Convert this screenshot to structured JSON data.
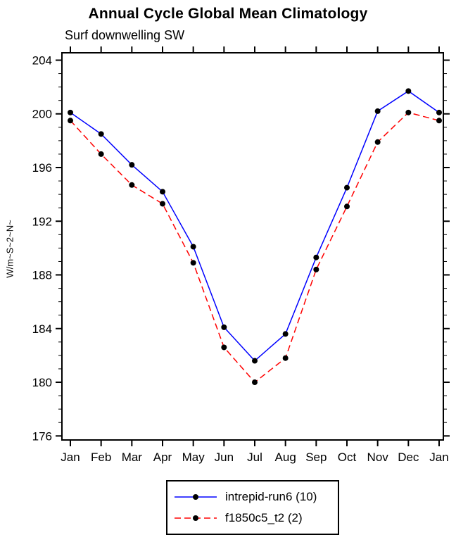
{
  "title": "Annual Cycle Global Mean Climatology",
  "subtitle": "Surf downwelling SW",
  "chart_data": {
    "type": "line",
    "title": "Annual Cycle Global Mean Climatology",
    "subtitle": "Surf downwelling SW",
    "xlabel": "",
    "ylabel": "W/m~S~2~N~",
    "x_categories": [
      "Jan",
      "Feb",
      "Mar",
      "Apr",
      "May",
      "Jun",
      "Jul",
      "Aug",
      "Sep",
      "Oct",
      "Nov",
      "Dec",
      "Jan"
    ],
    "ylim": [
      176,
      204
    ],
    "ytick_interval": 4,
    "yticks": [
      176,
      180,
      184,
      188,
      192,
      196,
      200,
      204
    ],
    "grid": false,
    "legend_position": "bottom-center",
    "series": [
      {
        "name": "intrepid-run6 (10)",
        "color": "#0000ff",
        "line_style": "solid",
        "marker": "filled-circle",
        "marker_color": "#000000",
        "values": [
          200.1,
          198.5,
          196.2,
          194.2,
          190.1,
          184.1,
          181.6,
          183.6,
          189.3,
          194.5,
          200.2,
          201.7,
          200.1
        ]
      },
      {
        "name": "f1850c5_t2 (2)",
        "color": "#ff0000",
        "line_style": "dashed",
        "marker": "filled-circle",
        "marker_color": "#000000",
        "values": [
          199.5,
          197.0,
          194.7,
          193.3,
          188.9,
          182.6,
          180.0,
          181.8,
          188.4,
          193.1,
          197.9,
          200.1,
          199.5
        ]
      }
    ]
  }
}
